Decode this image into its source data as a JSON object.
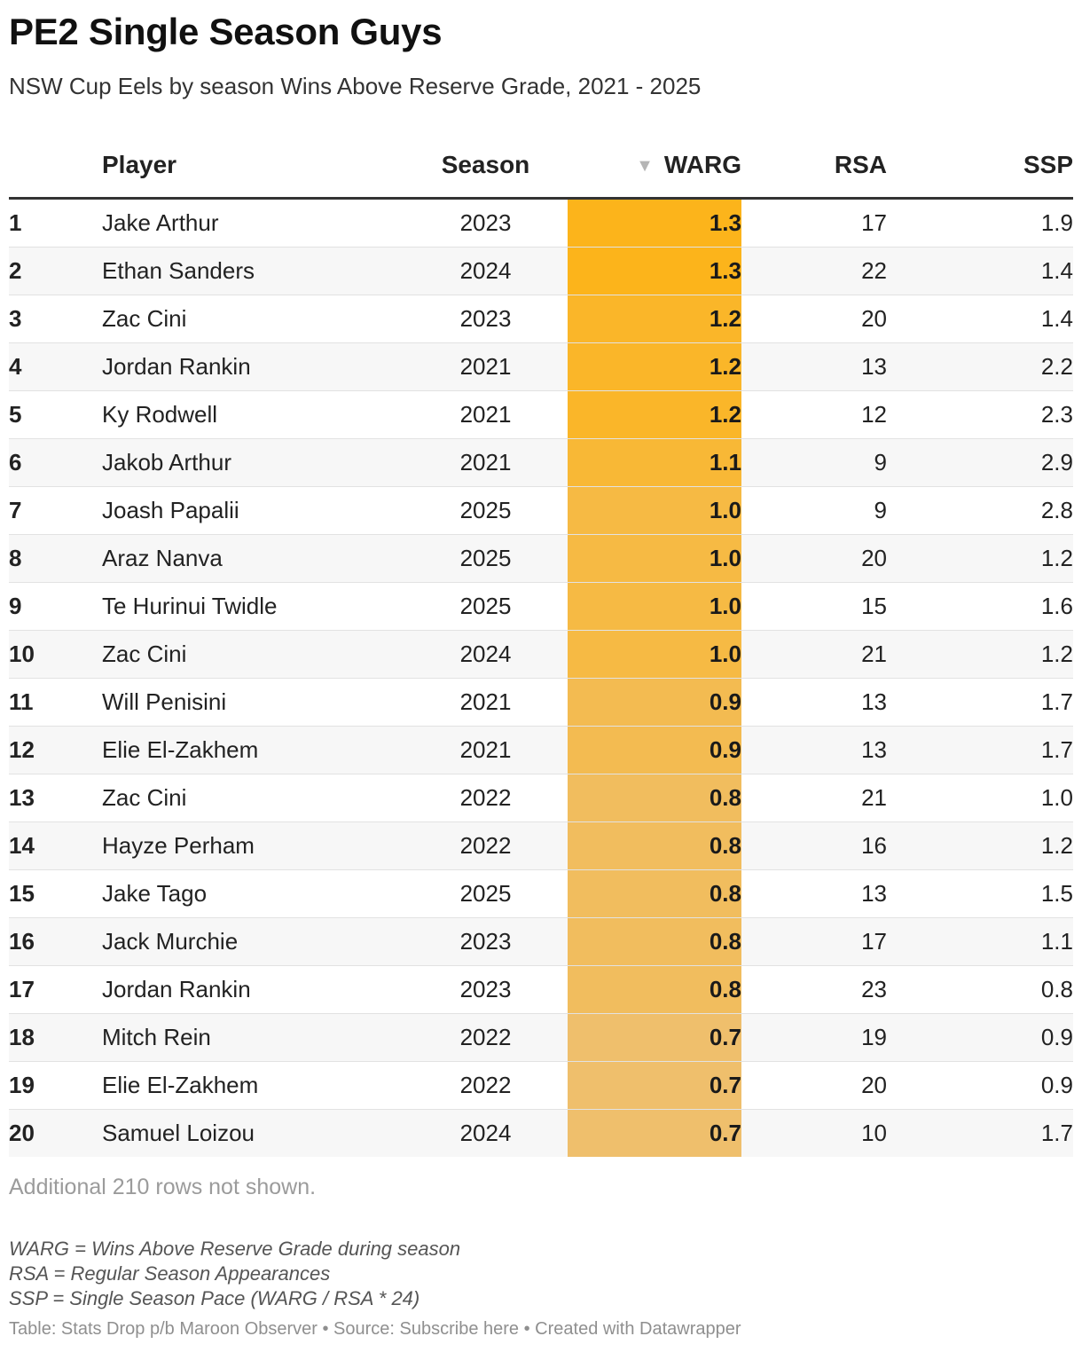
{
  "header": {
    "title": "PE2 Single Season Guys",
    "subtitle": "NSW Cup Eels by season Wins Above Reserve Grade, 2021 - 2025"
  },
  "colors": {
    "warg_high": "#fcb41b",
    "warg_low": "#efbf6c"
  },
  "chart_data": {
    "type": "table",
    "title": "PE2 Single Season Guys",
    "subtitle": "NSW Cup Eels by season Wins Above Reserve Grade, 2021 - 2025",
    "columns": [
      "",
      "Player",
      "Season",
      "WARG",
      "RSA",
      "SSP"
    ],
    "sort_column": "WARG",
    "sort_indicator": "▼",
    "rows": [
      {
        "rank": "1",
        "player": "Jake Arthur",
        "season": "2023",
        "warg": "1.3",
        "rsa": "17",
        "ssp": "1.9"
      },
      {
        "rank": "2",
        "player": "Ethan Sanders",
        "season": "2024",
        "warg": "1.3",
        "rsa": "22",
        "ssp": "1.4"
      },
      {
        "rank": "3",
        "player": "Zac Cini",
        "season": "2023",
        "warg": "1.2",
        "rsa": "20",
        "ssp": "1.4"
      },
      {
        "rank": "4",
        "player": "Jordan Rankin",
        "season": "2021",
        "warg": "1.2",
        "rsa": "13",
        "ssp": "2.2"
      },
      {
        "rank": "5",
        "player": "Ky Rodwell",
        "season": "2021",
        "warg": "1.2",
        "rsa": "12",
        "ssp": "2.3"
      },
      {
        "rank": "6",
        "player": "Jakob Arthur",
        "season": "2021",
        "warg": "1.1",
        "rsa": "9",
        "ssp": "2.9"
      },
      {
        "rank": "7",
        "player": "Joash Papalii",
        "season": "2025",
        "warg": "1.0",
        "rsa": "9",
        "ssp": "2.8"
      },
      {
        "rank": "8",
        "player": "Araz Nanva",
        "season": "2025",
        "warg": "1.0",
        "rsa": "20",
        "ssp": "1.2"
      },
      {
        "rank": "9",
        "player": "Te Hurinui Twidle",
        "season": "2025",
        "warg": "1.0",
        "rsa": "15",
        "ssp": "1.6"
      },
      {
        "rank": "10",
        "player": "Zac Cini",
        "season": "2024",
        "warg": "1.0",
        "rsa": "21",
        "ssp": "1.2"
      },
      {
        "rank": "11",
        "player": "Will Penisini",
        "season": "2021",
        "warg": "0.9",
        "rsa": "13",
        "ssp": "1.7"
      },
      {
        "rank": "12",
        "player": "Elie El-Zakhem",
        "season": "2021",
        "warg": "0.9",
        "rsa": "13",
        "ssp": "1.7"
      },
      {
        "rank": "13",
        "player": "Zac Cini",
        "season": "2022",
        "warg": "0.8",
        "rsa": "21",
        "ssp": "1.0"
      },
      {
        "rank": "14",
        "player": "Hayze Perham",
        "season": "2022",
        "warg": "0.8",
        "rsa": "16",
        "ssp": "1.2"
      },
      {
        "rank": "15",
        "player": "Jake Tago",
        "season": "2025",
        "warg": "0.8",
        "rsa": "13",
        "ssp": "1.5"
      },
      {
        "rank": "16",
        "player": "Jack Murchie",
        "season": "2023",
        "warg": "0.8",
        "rsa": "17",
        "ssp": "1.1"
      },
      {
        "rank": "17",
        "player": "Jordan Rankin",
        "season": "2023",
        "warg": "0.8",
        "rsa": "23",
        "ssp": "0.8"
      },
      {
        "rank": "18",
        "player": "Mitch Rein",
        "season": "2022",
        "warg": "0.7",
        "rsa": "19",
        "ssp": "0.9"
      },
      {
        "rank": "19",
        "player": "Elie El-Zakhem",
        "season": "2022",
        "warg": "0.7",
        "rsa": "20",
        "ssp": "0.9"
      },
      {
        "rank": "20",
        "player": "Samuel Loizou",
        "season": "2024",
        "warg": "0.7",
        "rsa": "10",
        "ssp": "1.7"
      }
    ]
  },
  "footer": {
    "more_rows": "Additional 210 rows not shown.",
    "definitions": [
      "WARG = Wins Above Reserve Grade during season",
      "RSA = Regular Season Appearances",
      "SSP = Single Season Pace (WARG / RSA * 24)"
    ],
    "source": "Table: Stats Drop p/b Maroon Observer • Source: Subscribe here • Created with Datawrapper"
  }
}
